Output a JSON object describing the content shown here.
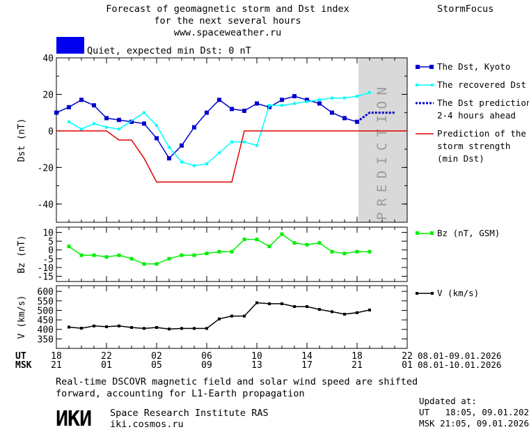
{
  "header": {
    "title_lines": [
      "Forecast of geomagnetic storm and Dst index",
      "for the next several hours",
      "www.spaceweather.ru"
    ],
    "brand": "StormFocus"
  },
  "status": {
    "text": "Quiet, expected min Dst: 0 nT",
    "color": "#0000ee"
  },
  "prediction_label": "PREDICTION",
  "time_axis": {
    "ut_label": "UT",
    "msk_label": "MSK",
    "ut_ticks": [
      "18",
      "22",
      "02",
      "06",
      "10",
      "14",
      "18",
      "22"
    ],
    "msk_ticks": [
      "21",
      "01",
      "05",
      "09",
      "13",
      "17",
      "21",
      "01"
    ],
    "ut_range": "08.01-09.01.2026",
    "msk_range": "08.01-10.01.2026"
  },
  "footer": {
    "note_lines": [
      "Real-time DSCOVR magnetic field and solar wind speed are shifted",
      "forward, accounting for L1-Earth propagation"
    ],
    "institute_logo": "ИКИ",
    "institute_name": "Space Research Institute RAS",
    "institute_url": "iki.cosmos.ru",
    "updated_label": "Updated at:",
    "updated_ut": "UT   18:05, 09.01.2026",
    "updated_msk": "MSK 21:05, 09.01.2026"
  },
  "colors": {
    "dst": "#0000cc",
    "recovered": "#00ffff",
    "prediction_line": "#0000cc",
    "storm": "#e00000",
    "bz": "#00ee00",
    "v": "#000000",
    "shade": "#d9d9d9"
  },
  "chart_data": [
    {
      "id": "dst",
      "type": "line",
      "ylabel": "Dst (nT)",
      "ylim": [
        -50,
        40
      ],
      "yticks": [
        40,
        20,
        0,
        -20,
        -40
      ],
      "xlim": [
        0,
        28
      ],
      "series": [
        {
          "name": "The Dst, Kyoto",
          "marker": "square",
          "x": [
            0,
            1,
            2,
            3,
            4,
            5,
            6,
            7,
            8,
            9,
            10,
            11,
            12,
            13,
            14,
            15,
            16,
            17,
            18,
            19,
            20,
            21,
            22,
            23,
            24
          ],
          "y": [
            10,
            13,
            17,
            14,
            7,
            6,
            5,
            4,
            -4,
            -15,
            -8,
            2,
            10,
            17,
            12,
            11,
            15,
            13,
            17,
            19,
            17,
            15,
            10,
            7,
            5
          ]
        },
        {
          "name": "The recovered Dst",
          "marker": "square-small",
          "x": [
            1,
            2,
            3,
            4,
            5,
            7,
            8,
            9,
            10,
            11,
            12,
            13,
            14,
            15,
            16,
            17,
            18,
            19,
            20,
            21,
            22,
            23,
            24,
            25
          ],
          "y": [
            5,
            1,
            4,
            2,
            1,
            10,
            3,
            -9,
            -17,
            -19,
            -18,
            -12,
            -6,
            -6,
            -8,
            14,
            14,
            15,
            16,
            17,
            18,
            18,
            19,
            21
          ]
        },
        {
          "name": "The Dst prediction\n2-4 hours ahead",
          "style": "dotted",
          "x": [
            24,
            25,
            26,
            27
          ],
          "y": [
            5,
            10,
            10,
            10
          ]
        },
        {
          "name": "Prediction of the\nstorm strength\n(min Dst)",
          "style": "step",
          "x": [
            0,
            4,
            5,
            6,
            7,
            8,
            9,
            10,
            11,
            12,
            13,
            14,
            15,
            16,
            17,
            18,
            19,
            20,
            21,
            22,
            23,
            24,
            25,
            26,
            27,
            28
          ],
          "y": [
            0,
            0,
            -5,
            -5,
            -15,
            -28,
            -28,
            -28,
            -28,
            -28,
            -28,
            -28,
            0,
            0,
            0,
            0,
            0,
            0,
            0,
            0,
            0,
            0,
            0,
            0,
            0,
            0
          ]
        }
      ]
    },
    {
      "id": "bz",
      "type": "line",
      "ylabel": "Bz (nT)",
      "ylim": [
        -18,
        13
      ],
      "yticks": [
        10,
        5,
        0,
        -5,
        -10,
        -15
      ],
      "xlim": [
        0,
        28
      ],
      "series": [
        {
          "name": "Bz (nT, GSM)",
          "x": [
            1,
            2,
            3,
            4,
            5,
            6,
            7,
            8,
            9,
            10,
            11,
            12,
            13,
            14,
            15,
            16,
            17,
            18,
            19,
            20,
            21,
            22,
            23,
            24,
            25
          ],
          "y": [
            2,
            -3,
            -3,
            -4,
            -3,
            -5,
            -8,
            -8,
            -5,
            -3,
            -3,
            -2,
            -1,
            -1,
            6,
            6,
            2,
            9,
            4,
            3,
            4,
            -1,
            -2,
            -1,
            -1
          ]
        }
      ]
    },
    {
      "id": "v",
      "type": "line",
      "ylabel": "V (km/s)",
      "ylim": [
        300,
        630
      ],
      "yticks": [
        600,
        550,
        500,
        450,
        400,
        350
      ],
      "xlim": [
        0,
        28
      ],
      "series": [
        {
          "name": "V (km/s)",
          "x": [
            1,
            2,
            3,
            4,
            5,
            6,
            7,
            8,
            9,
            10,
            11,
            12,
            13,
            14,
            15,
            16,
            17,
            18,
            19,
            20,
            21,
            22,
            23,
            24,
            25
          ],
          "y": [
            412,
            406,
            418,
            414,
            418,
            410,
            405,
            410,
            402,
            405,
            405,
            405,
            455,
            470,
            470,
            540,
            535,
            535,
            520,
            520,
            505,
            493,
            480,
            488,
            502
          ]
        }
      ]
    }
  ]
}
